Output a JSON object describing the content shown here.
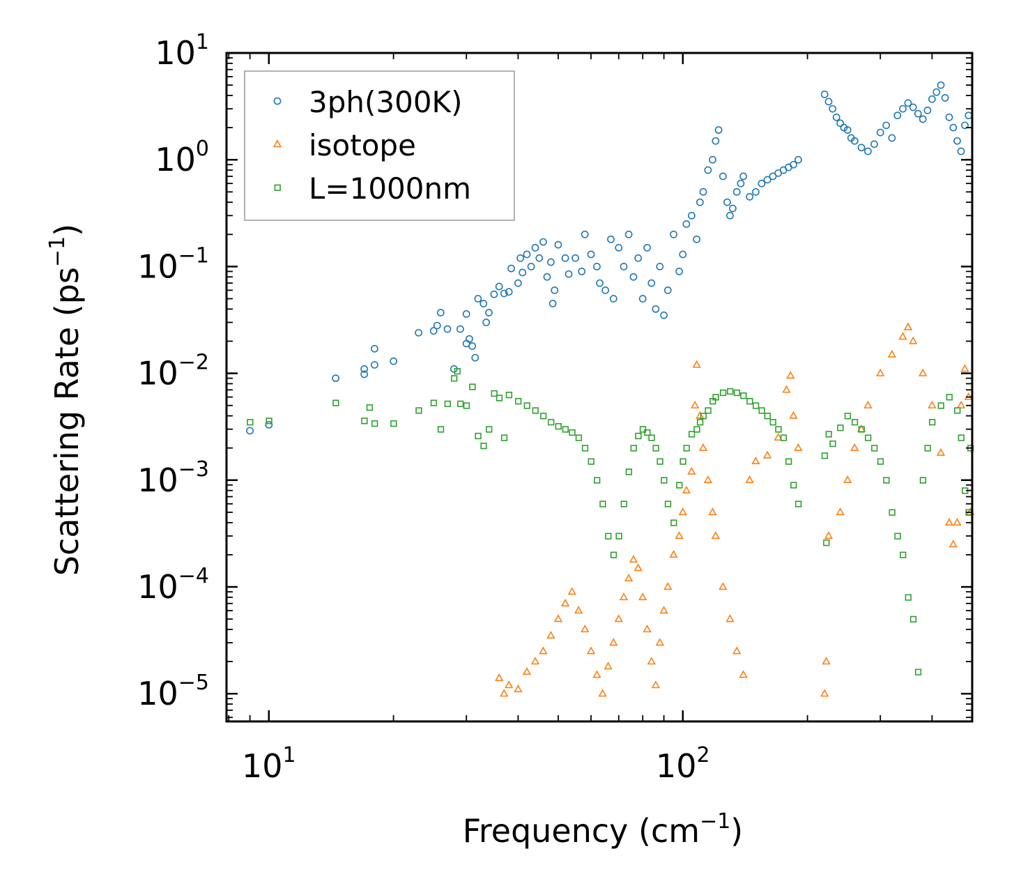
{
  "chart_data": {
    "type": "scatter",
    "xscale": "log",
    "yscale": "log",
    "xlabel": "Frequency (cm",
    "xlabel_sup": "−1",
    "xlabel_close": ")",
    "ylabel": "Scattering Rate (ps",
    "ylabel_sup": "−1",
    "ylabel_close": ")",
    "xlim": [
      7.9,
      500
    ],
    "ylim": [
      5.5e-06,
      10
    ],
    "x_ticks": [
      {
        "value": 10,
        "base": "10",
        "exp": "1"
      },
      {
        "value": 100,
        "base": "10",
        "exp": "2"
      }
    ],
    "y_ticks": [
      {
        "value": 10,
        "base": "10",
        "exp": "1"
      },
      {
        "value": 1,
        "base": "10",
        "exp": "0"
      },
      {
        "value": 0.1,
        "base": "10",
        "exp": "−1"
      },
      {
        "value": 0.01,
        "base": "10",
        "exp": "−2"
      },
      {
        "value": 0.001,
        "base": "10",
        "exp": "−3"
      },
      {
        "value": 0.0001,
        "base": "10",
        "exp": "−4"
      },
      {
        "value": 1e-05,
        "base": "10",
        "exp": "−5"
      }
    ],
    "legend": {
      "location": "top-left"
    },
    "series": [
      {
        "name": "3ph(300K)",
        "marker": "circle",
        "color": "#1f77b4",
        "points": [
          [
            9,
            0.0029
          ],
          [
            10,
            0.0033
          ],
          [
            14.5,
            0.009
          ],
          [
            17,
            0.0098
          ],
          [
            17,
            0.011
          ],
          [
            18,
            0.012
          ],
          [
            18,
            0.017
          ],
          [
            20,
            0.013
          ],
          [
            23,
            0.024
          ],
          [
            25,
            0.025
          ],
          [
            25.5,
            0.028
          ],
          [
            26,
            0.037
          ],
          [
            27,
            0.026
          ],
          [
            28,
            0.011
          ],
          [
            29,
            0.026
          ],
          [
            30,
            0.019
          ],
          [
            30,
            0.036
          ],
          [
            30.5,
            0.021
          ],
          [
            31,
            0.018
          ],
          [
            31.5,
            0.014
          ],
          [
            32,
            0.05
          ],
          [
            33,
            0.045
          ],
          [
            33.5,
            0.03
          ],
          [
            34,
            0.037
          ],
          [
            35,
            0.055
          ],
          [
            36,
            0.065
          ],
          [
            37,
            0.056
          ],
          [
            38,
            0.058
          ],
          [
            38.5,
            0.096
          ],
          [
            40,
            0.07
          ],
          [
            40.5,
            0.12
          ],
          [
            41,
            0.088
          ],
          [
            42,
            0.13
          ],
          [
            43,
            0.1
          ],
          [
            44,
            0.15
          ],
          [
            45,
            0.12
          ],
          [
            46,
            0.17
          ],
          [
            47,
            0.08
          ],
          [
            48,
            0.11
          ],
          [
            48.5,
            0.045
          ],
          [
            49,
            0.06
          ],
          [
            50,
            0.16
          ],
          [
            52,
            0.12
          ],
          [
            53,
            0.085
          ],
          [
            55,
            0.12
          ],
          [
            57,
            0.09
          ],
          [
            58,
            0.2
          ],
          [
            60,
            0.13
          ],
          [
            62,
            0.1
          ],
          [
            63,
            0.07
          ],
          [
            65,
            0.06
          ],
          [
            67,
            0.18
          ],
          [
            68,
            0.05
          ],
          [
            70,
            0.15
          ],
          [
            72,
            0.1
          ],
          [
            74,
            0.2
          ],
          [
            76,
            0.08
          ],
          [
            78,
            0.12
          ],
          [
            80,
            0.05
          ],
          [
            82,
            0.15
          ],
          [
            84,
            0.07
          ],
          [
            86,
            0.04
          ],
          [
            88,
            0.1
          ],
          [
            90,
            0.035
          ],
          [
            92,
            0.06
          ],
          [
            95,
            0.2
          ],
          [
            98,
            0.09
          ],
          [
            100,
            0.13
          ],
          [
            102,
            0.25
          ],
          [
            105,
            0.3
          ],
          [
            108,
            0.18
          ],
          [
            110,
            0.4
          ],
          [
            112,
            0.5
          ],
          [
            115,
            0.8
          ],
          [
            118,
            1.0
          ],
          [
            120,
            1.5
          ],
          [
            122,
            1.9
          ],
          [
            125,
            0.7
          ],
          [
            128,
            0.4
          ],
          [
            130,
            0.3
          ],
          [
            132,
            0.35
          ],
          [
            135,
            0.5
          ],
          [
            138,
            0.6
          ],
          [
            140,
            0.7
          ],
          [
            145,
            0.45
          ],
          [
            150,
            0.5
          ],
          [
            155,
            0.6
          ],
          [
            160,
            0.65
          ],
          [
            165,
            0.7
          ],
          [
            170,
            0.75
          ],
          [
            175,
            0.8
          ],
          [
            180,
            0.85
          ],
          [
            185,
            0.9
          ],
          [
            190,
            1.0
          ],
          [
            220,
            4.1
          ],
          [
            225,
            3.5
          ],
          [
            230,
            3.0
          ],
          [
            235,
            2.5
          ],
          [
            240,
            2.2
          ],
          [
            245,
            2.0
          ],
          [
            250,
            1.9
          ],
          [
            255,
            1.6
          ],
          [
            260,
            1.5
          ],
          [
            270,
            1.3
          ],
          [
            280,
            1.2
          ],
          [
            290,
            1.4
          ],
          [
            300,
            1.8
          ],
          [
            310,
            2.1
          ],
          [
            320,
            1.6
          ],
          [
            330,
            2.6
          ],
          [
            340,
            3.0
          ],
          [
            350,
            3.4
          ],
          [
            360,
            3.1
          ],
          [
            370,
            2.7
          ],
          [
            380,
            2.4
          ],
          [
            390,
            2.9
          ],
          [
            400,
            3.7
          ],
          [
            410,
            4.3
          ],
          [
            420,
            5.0
          ],
          [
            430,
            3.8
          ],
          [
            440,
            2.5
          ],
          [
            450,
            2.0
          ],
          [
            460,
            1.5
          ],
          [
            470,
            1.2
          ],
          [
            480,
            2.1
          ],
          [
            490,
            2.6
          ]
        ]
      },
      {
        "name": "isotope",
        "marker": "triangle",
        "color": "#ff7f0e",
        "points": [
          [
            36,
            1.4e-05
          ],
          [
            37,
            1e-05
          ],
          [
            38,
            1.2e-05
          ],
          [
            40,
            1.1e-05
          ],
          [
            42,
            1.6e-05
          ],
          [
            44,
            2e-05
          ],
          [
            46,
            2.5e-05
          ],
          [
            48,
            3.5e-05
          ],
          [
            50,
            5e-05
          ],
          [
            52,
            7e-05
          ],
          [
            54,
            9e-05
          ],
          [
            56,
            6e-05
          ],
          [
            58,
            4e-05
          ],
          [
            60,
            2.5e-05
          ],
          [
            62,
            1.5e-05
          ],
          [
            64,
            1e-05
          ],
          [
            66,
            1.8e-05
          ],
          [
            68,
            3e-05
          ],
          [
            70,
            5e-05
          ],
          [
            72,
            8e-05
          ],
          [
            74,
            0.00012
          ],
          [
            76,
            0.00018
          ],
          [
            78,
            0.00015
          ],
          [
            80,
            8e-05
          ],
          [
            82,
            4e-05
          ],
          [
            84,
            2e-05
          ],
          [
            86,
            1.2e-05
          ],
          [
            88,
            3e-05
          ],
          [
            90,
            6e-05
          ],
          [
            92,
            0.0001
          ],
          [
            95,
            0.0002
          ],
          [
            98,
            0.0003
          ],
          [
            100,
            0.0005
          ],
          [
            102,
            0.0008
          ],
          [
            105,
            0.0012
          ],
          [
            107,
            0.005
          ],
          [
            108,
            0.012
          ],
          [
            110,
            0.004
          ],
          [
            112,
            0.002
          ],
          [
            115,
            0.001
          ],
          [
            118,
            0.0005
          ],
          [
            120,
            0.0003
          ],
          [
            125,
            0.0001
          ],
          [
            130,
            5e-05
          ],
          [
            135,
            2.5e-05
          ],
          [
            140,
            1.5e-05
          ],
          [
            145,
            0.001
          ],
          [
            150,
            0.0015
          ],
          [
            160,
            0.0017
          ],
          [
            170,
            0.0025
          ],
          [
            178,
            0.007
          ],
          [
            182,
            0.0095
          ],
          [
            185,
            0.004
          ],
          [
            190,
            0.002
          ],
          [
            220,
            1e-05
          ],
          [
            222,
            2e-05
          ],
          [
            225,
            0.0003
          ],
          [
            240,
            0.0005
          ],
          [
            250,
            0.001
          ],
          [
            260,
            0.002
          ],
          [
            270,
            0.003
          ],
          [
            280,
            0.005
          ],
          [
            300,
            0.01
          ],
          [
            320,
            0.015
          ],
          [
            340,
            0.022
          ],
          [
            350,
            0.027
          ],
          [
            360,
            0.02
          ],
          [
            380,
            0.01
          ],
          [
            400,
            0.005
          ],
          [
            420,
            0.0018
          ],
          [
            440,
            0.0004
          ],
          [
            450,
            0.00025
          ],
          [
            460,
            0.0004
          ],
          [
            470,
            0.005
          ],
          [
            480,
            0.011
          ],
          [
            490,
            0.006
          ],
          [
            495,
            0.0005
          ]
        ]
      },
      {
        "name": "L=1000nm",
        "marker": "square",
        "color": "#2ca02c",
        "points": [
          [
            9,
            0.0035
          ],
          [
            10,
            0.0036
          ],
          [
            14.5,
            0.0053
          ],
          [
            17,
            0.0036
          ],
          [
            17.5,
            0.0048
          ],
          [
            18,
            0.0034
          ],
          [
            20,
            0.0034
          ],
          [
            23,
            0.0045
          ],
          [
            25,
            0.0053
          ],
          [
            26,
            0.003
          ],
          [
            27,
            0.0052
          ],
          [
            28,
            0.009
          ],
          [
            28.5,
            0.0105
          ],
          [
            29,
            0.0052
          ],
          [
            30,
            0.005
          ],
          [
            31,
            0.0075
          ],
          [
            32,
            0.0026
          ],
          [
            33,
            0.0021
          ],
          [
            34,
            0.003
          ],
          [
            35,
            0.0065
          ],
          [
            36,
            0.0059
          ],
          [
            37,
            0.0025
          ],
          [
            38,
            0.0063
          ],
          [
            40,
            0.0055
          ],
          [
            42,
            0.005
          ],
          [
            44,
            0.0045
          ],
          [
            46,
            0.004
          ],
          [
            48,
            0.0035
          ],
          [
            50,
            0.0032
          ],
          [
            52,
            0.003
          ],
          [
            54,
            0.0028
          ],
          [
            56,
            0.0025
          ],
          [
            58,
            0.002
          ],
          [
            60,
            0.0015
          ],
          [
            62,
            0.001
          ],
          [
            64,
            0.0006
          ],
          [
            66,
            0.0003
          ],
          [
            68,
            0.0002
          ],
          [
            70,
            0.0003
          ],
          [
            72,
            0.0006
          ],
          [
            74,
            0.0012
          ],
          [
            76,
            0.002
          ],
          [
            78,
            0.0026
          ],
          [
            80,
            0.003
          ],
          [
            82,
            0.0028
          ],
          [
            84,
            0.0025
          ],
          [
            86,
            0.002
          ],
          [
            88,
            0.0015
          ],
          [
            90,
            0.001
          ],
          [
            92,
            0.0006
          ],
          [
            95,
            0.0004
          ],
          [
            98,
            0.0009
          ],
          [
            100,
            0.0015
          ],
          [
            102,
            0.002
          ],
          [
            105,
            0.0027
          ],
          [
            108,
            0.003
          ],
          [
            110,
            0.0035
          ],
          [
            112,
            0.004
          ],
          [
            115,
            0.0045
          ],
          [
            118,
            0.0055
          ],
          [
            120,
            0.006
          ],
          [
            125,
            0.0066
          ],
          [
            130,
            0.0068
          ],
          [
            135,
            0.0066
          ],
          [
            140,
            0.0062
          ],
          [
            145,
            0.0055
          ],
          [
            150,
            0.005
          ],
          [
            155,
            0.0045
          ],
          [
            160,
            0.004
          ],
          [
            165,
            0.0035
          ],
          [
            170,
            0.003
          ],
          [
            175,
            0.0025
          ],
          [
            180,
            0.0015
          ],
          [
            185,
            0.0009
          ],
          [
            190,
            0.0006
          ],
          [
            220,
            0.0017
          ],
          [
            222,
            0.00026
          ],
          [
            225,
            0.0027
          ],
          [
            230,
            0.0022
          ],
          [
            240,
            0.0031
          ],
          [
            250,
            0.004
          ],
          [
            260,
            0.0035
          ],
          [
            270,
            0.003
          ],
          [
            280,
            0.0025
          ],
          [
            290,
            0.002
          ],
          [
            300,
            0.0015
          ],
          [
            310,
            0.001
          ],
          [
            320,
            0.0005
          ],
          [
            330,
            0.0003
          ],
          [
            340,
            0.0002
          ],
          [
            350,
            8e-05
          ],
          [
            360,
            5e-05
          ],
          [
            370,
            1.6e-05
          ],
          [
            380,
            0.001
          ],
          [
            390,
            0.002
          ],
          [
            400,
            0.0035
          ],
          [
            420,
            0.005
          ],
          [
            440,
            0.006
          ],
          [
            460,
            0.0045
          ],
          [
            470,
            0.0025
          ],
          [
            480,
            0.0008
          ],
          [
            490,
            0.0005
          ],
          [
            495,
            0.002
          ]
        ]
      }
    ]
  }
}
